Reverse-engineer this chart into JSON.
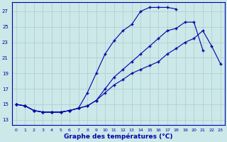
{
  "xlabel": "Graphe des températures (°C)",
  "bg_color": "#cce8e8",
  "grid_color": "#aacccc",
  "line_color": "#0000aa",
  "x_ticks": [
    0,
    1,
    2,
    3,
    4,
    5,
    6,
    7,
    8,
    9,
    10,
    11,
    12,
    13,
    14,
    15,
    16,
    17,
    18,
    19,
    20,
    21,
    22,
    23
  ],
  "y_ticks": [
    13,
    15,
    17,
    19,
    21,
    23,
    25,
    27
  ],
  "ylim": [
    12.3,
    28.2
  ],
  "xlim": [
    -0.5,
    23.5
  ],
  "line_top": [
    15.0,
    14.8,
    14.2,
    14.0,
    14.0,
    14.0,
    14.2,
    14.5,
    16.5,
    19.0,
    21.5,
    23.2,
    24.5,
    25.3,
    27.0,
    27.5,
    27.5,
    27.5,
    27.3,
    null,
    null,
    null,
    null,
    null
  ],
  "line_mid": [
    15.0,
    14.8,
    14.2,
    14.0,
    14.0,
    14.0,
    14.2,
    14.5,
    14.8,
    15.5,
    17.0,
    18.5,
    19.5,
    20.5,
    21.5,
    22.5,
    23.5,
    24.5,
    24.8,
    25.6,
    25.6,
    22.0,
    null,
    null
  ],
  "line_bot": [
    15.0,
    14.8,
    14.2,
    14.0,
    14.0,
    14.0,
    14.2,
    14.5,
    14.8,
    15.5,
    16.5,
    17.5,
    18.2,
    19.0,
    19.5,
    20.0,
    20.5,
    21.5,
    22.2,
    23.0,
    23.5,
    24.5,
    22.5,
    20.2
  ]
}
